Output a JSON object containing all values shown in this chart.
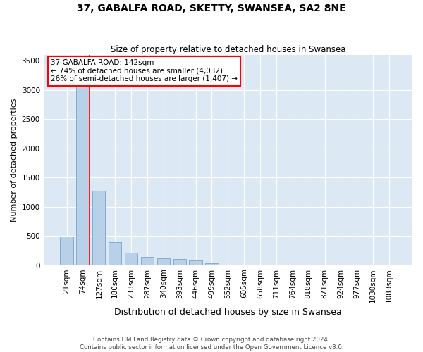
{
  "title": "37, GABALFA ROAD, SKETTY, SWANSEA, SA2 8NE",
  "subtitle": "Size of property relative to detached houses in Swansea",
  "xlabel": "Distribution of detached houses by size in Swansea",
  "ylabel": "Number of detached properties",
  "footer_line1": "Contains HM Land Registry data © Crown copyright and database right 2024.",
  "footer_line2": "Contains public sector information licensed under the Open Government Licence v3.0.",
  "annotation_line1": "37 GABALFA ROAD: 142sqm",
  "annotation_line2": "← 74% of detached houses are smaller (4,032)",
  "annotation_line3": "26% of semi-detached houses are larger (1,407) →",
  "bar_color": "#b8d0e8",
  "bar_edge_color": "#6699cc",
  "marker_line_color": "red",
  "background_color": "#dce9f5",
  "categories": [
    "21sqm",
    "74sqm",
    "127sqm",
    "180sqm",
    "233sqm",
    "287sqm",
    "340sqm",
    "393sqm",
    "446sqm",
    "499sqm",
    "552sqm",
    "605sqm",
    "658sqm",
    "711sqm",
    "764sqm",
    "818sqm",
    "871sqm",
    "924sqm",
    "977sqm",
    "1030sqm",
    "1083sqm"
  ],
  "values": [
    490,
    3220,
    1270,
    390,
    210,
    145,
    120,
    100,
    85,
    30,
    0,
    0,
    0,
    0,
    0,
    0,
    0,
    0,
    0,
    0,
    0
  ],
  "ylim": [
    0,
    3600
  ],
  "yticks": [
    0,
    500,
    1000,
    1500,
    2000,
    2500,
    3000,
    3500
  ],
  "marker_bar_index": 2,
  "red_line_x": 1.4
}
